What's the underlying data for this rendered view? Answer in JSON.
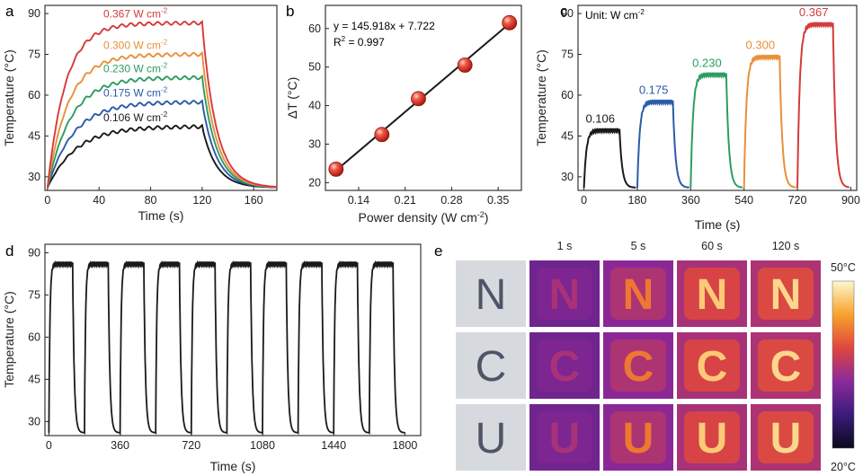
{
  "chart_data": [
    {
      "panel": "a",
      "type": "line",
      "title": "",
      "xlabel": "Time (s)",
      "ylabel": "Temperature (°C)",
      "xlim": [
        -2,
        178
      ],
      "ylim": [
        25,
        93
      ],
      "xticks": [
        0,
        40,
        80,
        120,
        160
      ],
      "yticks": [
        30,
        45,
        60,
        75,
        90
      ],
      "series": [
        {
          "name": "0.106 W cm",
          "label": "0.106 W cm",
          "sup": "-2",
          "color": "#1a1a1a",
          "plateau": 48.5,
          "tau": 22
        },
        {
          "name": "0.175 W cm",
          "label": "0.175 W cm",
          "sup": "-2",
          "color": "#2a5ba8",
          "plateau": 57.5,
          "tau": 20
        },
        {
          "name": "0.230 W cm",
          "label": "0.230 W cm",
          "sup": "-2",
          "color": "#2e9c62",
          "plateau": 66.5,
          "tau": 18
        },
        {
          "name": "0.300 W cm",
          "label": "0.300 W cm",
          "sup": "-2",
          "color": "#e8903a",
          "plateau": 75,
          "tau": 16
        },
        {
          "name": "0.367 W cm",
          "label": "0.367 W cm",
          "sup": "-2",
          "color": "#d63a3a",
          "plateau": 86.5,
          "tau": 14
        }
      ],
      "laser_off_time": 120,
      "baseline": 26
    },
    {
      "panel": "b",
      "type": "scatter",
      "title": "",
      "xlabel": "Power density (W cm",
      "xlabel_sup": "-2",
      "xlabel_end": ")",
      "ylabel": "ΔT (°C)",
      "xlim": [
        0.09,
        0.385
      ],
      "ylim": [
        18,
        66
      ],
      "xticks": [
        0.14,
        0.21,
        0.28,
        0.35
      ],
      "yticks": [
        20,
        30,
        40,
        50,
        60
      ],
      "x": [
        0.106,
        0.175,
        0.23,
        0.3,
        0.367
      ],
      "y": [
        23.5,
        32.5,
        41.8,
        50.5,
        61.5
      ],
      "fit": {
        "slope": 145.918,
        "intercept": 7.722
      },
      "equation": "y = 145.918x + 7.722",
      "r2_label": "R",
      "r2_sup": "2",
      "r2_value": " = 0.997"
    },
    {
      "panel": "c",
      "type": "line",
      "title": "",
      "xlabel": "Time (s)",
      "ylabel": "Temperature (°C)",
      "xlim": [
        -20,
        920
      ],
      "ylim": [
        25,
        93
      ],
      "xticks": [
        0,
        180,
        360,
        540,
        720,
        900
      ],
      "yticks": [
        30,
        45,
        60,
        75,
        90
      ],
      "unit_label": "Unit: W cm",
      "unit_sup": "-2",
      "segments": [
        {
          "label": "0.106",
          "color": "#1a1a1a",
          "start": 0,
          "plateau": 47
        },
        {
          "label": "0.175",
          "color": "#2a5ba8",
          "start": 180,
          "plateau": 57.5
        },
        {
          "label": "0.230",
          "color": "#2e9c62",
          "start": 360,
          "plateau": 67.5
        },
        {
          "label": "0.300",
          "color": "#e8903a",
          "start": 540,
          "plateau": 74
        },
        {
          "label": "0.367",
          "color": "#d63a3a",
          "start": 720,
          "plateau": 86
        }
      ],
      "on_duration": 120,
      "baseline": 26
    },
    {
      "panel": "d",
      "type": "line",
      "title": "",
      "xlabel": "Time (s)",
      "ylabel": "Temperature (°C)",
      "xlim": [
        -20,
        1880
      ],
      "ylim": [
        25,
        93
      ],
      "xticks": [
        0,
        360,
        720,
        1080,
        1440,
        1800
      ],
      "yticks": [
        30,
        45,
        60,
        75,
        90
      ],
      "cycles": 10,
      "cycle_period": 180,
      "on_duration": 120,
      "plateau": 86,
      "baseline": 26,
      "color": "#1a1a1a"
    }
  ],
  "panel_e": {
    "letter": "e",
    "time_labels": [
      "1 s",
      "5 s",
      "60 s",
      "120 s"
    ],
    "rows": [
      "N",
      "C",
      "U"
    ],
    "intensity": [
      0.18,
      0.55,
      0.85,
      0.9
    ],
    "colorbar_max": "50°C",
    "colorbar_min": "20°C"
  },
  "letters": {
    "a": "a",
    "b": "b",
    "c": "c",
    "d": "d"
  }
}
